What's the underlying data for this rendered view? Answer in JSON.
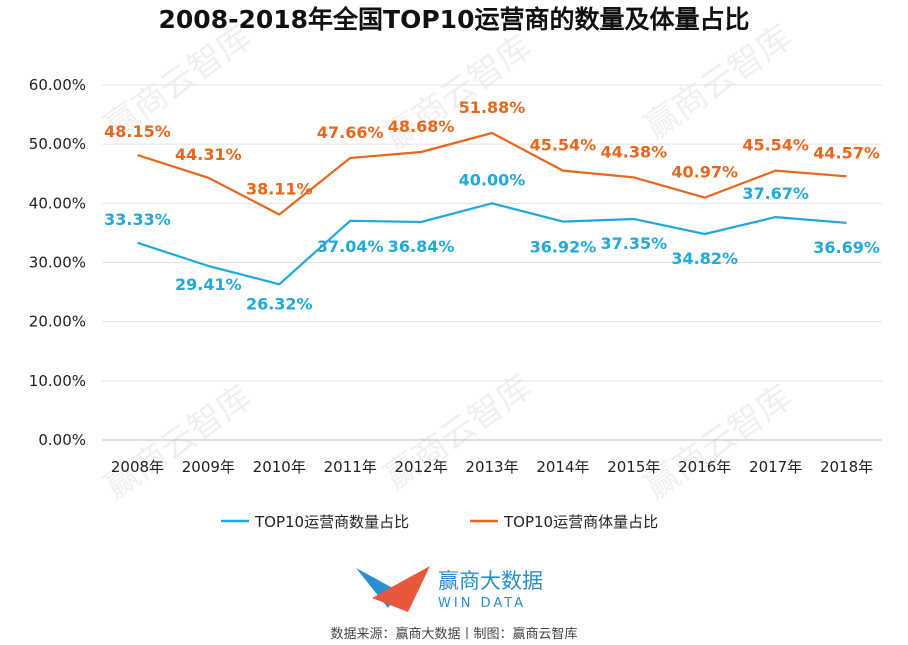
{
  "chart_data": {
    "type": "line",
    "title": "2008-2018年全国TOP10运营商的数量及体量占比",
    "categories": [
      "2008年",
      "2009年",
      "2010年",
      "2011年",
      "2012年",
      "2013年",
      "2014年",
      "2015年",
      "2016年",
      "2017年",
      "2018年"
    ],
    "series": [
      {
        "name": "TOP10运营商数量占比",
        "color": "#1fa9dc",
        "values": [
          33.33,
          29.41,
          26.32,
          37.04,
          36.84,
          40.0,
          36.92,
          37.35,
          34.82,
          37.67,
          36.69
        ],
        "labels": [
          "33.33%",
          "29.41%",
          "26.32%",
          "37.04%",
          "36.84%",
          "40.00%",
          "36.92%",
          "37.35%",
          "34.82%",
          "37.67%",
          "36.69%"
        ]
      },
      {
        "name": "TOP10运营商体量占比",
        "color": "#e8671c",
        "values": [
          48.15,
          44.31,
          38.11,
          47.66,
          48.68,
          51.88,
          45.54,
          44.38,
          40.97,
          45.54,
          44.57
        ],
        "labels": [
          "48.15%",
          "44.31%",
          "38.11%",
          "47.66%",
          "48.68%",
          "51.88%",
          "45.54%",
          "44.38%",
          "40.97%",
          "45.54%",
          "44.57%"
        ]
      }
    ],
    "ylim": [
      0,
      60
    ],
    "yticks": [
      "0.00%",
      "10.00%",
      "20.00%",
      "30.00%",
      "40.00%",
      "50.00%",
      "60.00%"
    ],
    "grid": true,
    "legend_position": "bottom"
  },
  "logo": {
    "name_cn": "赢商大数据",
    "name_en": "WIN DATA"
  },
  "footer": {
    "source": "数据来源：赢商大数据丨制图：赢商云智库"
  },
  "watermark": {
    "text": "赢商云智库"
  }
}
